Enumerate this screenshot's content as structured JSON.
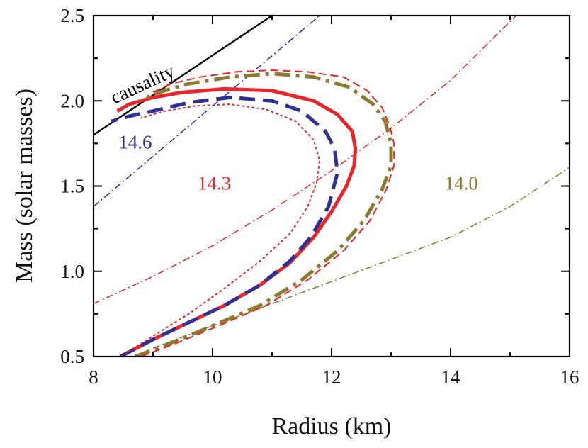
{
  "chart_data": {
    "type": "line",
    "xlabel": "Radius (km)",
    "ylabel": "Mass (solar masses)",
    "xlim": [
      8,
      16
    ],
    "ylim": [
      0.5,
      2.5
    ],
    "xticks": [
      8,
      10,
      12,
      14,
      16
    ],
    "yticks": [
      0.5,
      1.0,
      1.5,
      2.0,
      2.5
    ],
    "xtick_labels": [
      "8",
      "10",
      "12",
      "14",
      "16"
    ],
    "ytick_labels": [
      "0.5",
      "1.0",
      "1.5",
      "2.0",
      "2.5"
    ],
    "grid": false,
    "annotations": [
      {
        "text": "causality",
        "x": 8.35,
        "y": 1.98,
        "rotation": -25,
        "color": "#000000"
      },
      {
        "text": "14.6",
        "x": 8.42,
        "y": 1.72,
        "color": "#2e3192"
      },
      {
        "text": "14.3",
        "x": 9.75,
        "y": 1.48,
        "color": "#e8252b"
      },
      {
        "text": "14.0",
        "x": 13.9,
        "y": 1.48,
        "color": "#8b7b2f"
      }
    ],
    "series": [
      {
        "style": "solid-thin",
        "color": "#000000",
        "x": [
          8.0,
          11.0
        ],
        "y": [
          1.8,
          2.5
        ]
      },
      {
        "style": "dashdot-thin",
        "color": "#2e3192",
        "x": [
          8.0,
          11.8
        ],
        "y": [
          1.38,
          2.5
        ]
      },
      {
        "style": "dashdot-thin",
        "color": "#e8252b",
        "x": [
          8.0,
          9.0,
          10.0,
          11.0,
          12.0,
          13.0,
          14.0,
          15.1
        ],
        "y": [
          0.81,
          0.97,
          1.15,
          1.36,
          1.59,
          1.84,
          2.12,
          2.5
        ]
      },
      {
        "style": "dashdot-thin",
        "color": "#8b7b2f",
        "x": [
          9.0,
          10.0,
          11.0,
          12.0,
          13.0,
          14.0,
          15.0,
          16.0
        ],
        "y": [
          0.55,
          0.68,
          0.81,
          0.94,
          1.07,
          1.2,
          1.38,
          1.61
        ]
      },
      {
        "style": "solid-thick",
        "color": "#e8252b",
        "x": [
          8.45,
          9.0,
          9.6,
          10.2,
          10.8,
          11.3,
          11.7,
          12.0,
          12.25,
          12.38,
          12.4,
          12.35,
          12.1,
          11.7,
          11.0,
          10.2,
          9.5,
          9.0,
          8.6,
          8.4
        ],
        "y": [
          0.5,
          0.6,
          0.7,
          0.8,
          0.92,
          1.05,
          1.2,
          1.35,
          1.5,
          1.62,
          1.72,
          1.82,
          1.92,
          2.0,
          2.06,
          2.07,
          2.05,
          2.02,
          1.98,
          1.94
        ]
      },
      {
        "style": "dashed-thick",
        "color": "#2e3192",
        "x": [
          8.45,
          9.0,
          9.6,
          10.2,
          10.8,
          11.3,
          11.65,
          11.95,
          12.1,
          12.05,
          11.9,
          11.5,
          11.0,
          10.3,
          9.6,
          9.0,
          8.6,
          8.3
        ],
        "y": [
          0.5,
          0.6,
          0.7,
          0.8,
          0.92,
          1.06,
          1.2,
          1.38,
          1.58,
          1.72,
          1.82,
          1.94,
          2.0,
          2.02,
          1.99,
          1.94,
          1.91,
          1.88
        ]
      },
      {
        "style": "dotted",
        "color": "#e8252b",
        "x": [
          8.45,
          9.0,
          9.6,
          10.2,
          10.8,
          11.3,
          11.6,
          11.75,
          11.8,
          11.7,
          11.4,
          10.9,
          10.3,
          9.7,
          9.2,
          8.8
        ],
        "y": [
          0.5,
          0.62,
          0.75,
          0.9,
          1.06,
          1.22,
          1.38,
          1.52,
          1.65,
          1.77,
          1.88,
          1.95,
          1.98,
          1.97,
          1.94,
          1.9
        ]
      },
      {
        "style": "dashdot-thick",
        "color": "#8b7b2f",
        "x": [
          8.7,
          9.3,
          10.0,
          10.8,
          11.5,
          12.1,
          12.55,
          12.85,
          13.0,
          13.0,
          12.9,
          12.7,
          12.3,
          11.7,
          11.0,
          10.3,
          9.6,
          9.0,
          8.8
        ],
        "y": [
          0.5,
          0.58,
          0.68,
          0.8,
          0.95,
          1.12,
          1.3,
          1.48,
          1.62,
          1.75,
          1.88,
          1.98,
          2.08,
          2.14,
          2.16,
          2.14,
          2.1,
          2.04,
          2.0
        ]
      },
      {
        "style": "dashed-thin",
        "color": "#e8252b",
        "x": [
          8.8,
          9.4,
          10.1,
          10.9,
          11.6,
          12.2,
          12.65,
          12.92,
          13.05,
          13.05,
          12.98,
          12.85,
          12.6,
          12.2,
          11.6,
          11.0,
          10.4,
          9.8,
          9.3,
          9.0
        ],
        "y": [
          0.5,
          0.58,
          0.68,
          0.8,
          0.95,
          1.12,
          1.3,
          1.48,
          1.62,
          1.75,
          1.85,
          1.96,
          2.06,
          2.14,
          2.17,
          2.18,
          2.17,
          2.14,
          2.1,
          2.05
        ]
      }
    ]
  }
}
